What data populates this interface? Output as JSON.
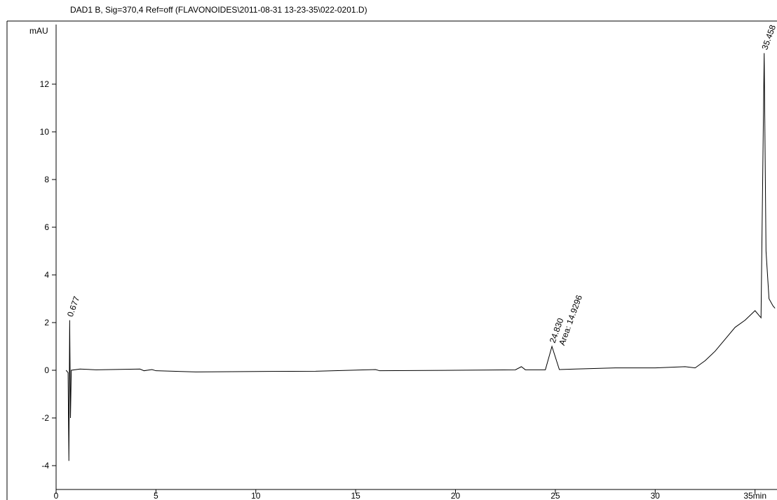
{
  "chart_data": {
    "type": "line",
    "title": "DAD1 B, Sig=370,4 Ref=off (FLAVONOIDES\\2011-08-31 13-23-35\\022-0201.D)",
    "y_label": "mAU",
    "x": [
      0.5,
      0.6,
      0.64,
      0.68,
      0.72,
      0.76,
      1.2,
      2,
      4.2,
      4.4,
      4.8,
      5,
      7,
      10,
      13,
      16,
      16.2,
      20,
      23,
      23.3,
      23.5,
      24.5,
      24.83,
      25.2,
      26,
      28,
      30,
      31.5,
      32,
      32.5,
      33,
      33.5,
      34,
      34.5,
      35,
      35.3,
      35.458,
      35.55,
      35.7,
      35.9,
      36
    ],
    "values": [
      0.0,
      -0.1,
      -3.8,
      2.1,
      -2.0,
      0.0,
      0.05,
      0.02,
      0.05,
      -0.02,
      0.03,
      -0.02,
      -0.07,
      -0.05,
      -0.04,
      0.03,
      -0.02,
      0.0,
      0.02,
      0.15,
      0.02,
      0.02,
      1.0,
      0.03,
      0.05,
      0.1,
      0.1,
      0.15,
      0.1,
      0.4,
      0.8,
      1.3,
      1.8,
      2.1,
      2.5,
      2.2,
      13.3,
      5.0,
      3.0,
      2.7,
      2.6
    ],
    "color": "#000000",
    "xlim": [
      0,
      36.1
    ],
    "ylim": [
      -5,
      14.5
    ],
    "xticks": [
      0,
      5,
      10,
      15,
      20,
      25,
      30,
      {
        "value": 35,
        "label": "35min"
      }
    ],
    "yticks": [
      -4,
      -2,
      0,
      2,
      4,
      6,
      8,
      10,
      12
    ],
    "annotations": [
      {
        "text": "0.677",
        "x": 0.677,
        "y": 2.1
      },
      {
        "text": "24.830",
        "x": 24.83,
        "y": 1.0
      },
      {
        "text": "Area: 14.9296",
        "x": 25.3,
        "y": 0.9
      },
      {
        "text": "35.458",
        "x": 35.458,
        "y": 13.3
      }
    ]
  }
}
